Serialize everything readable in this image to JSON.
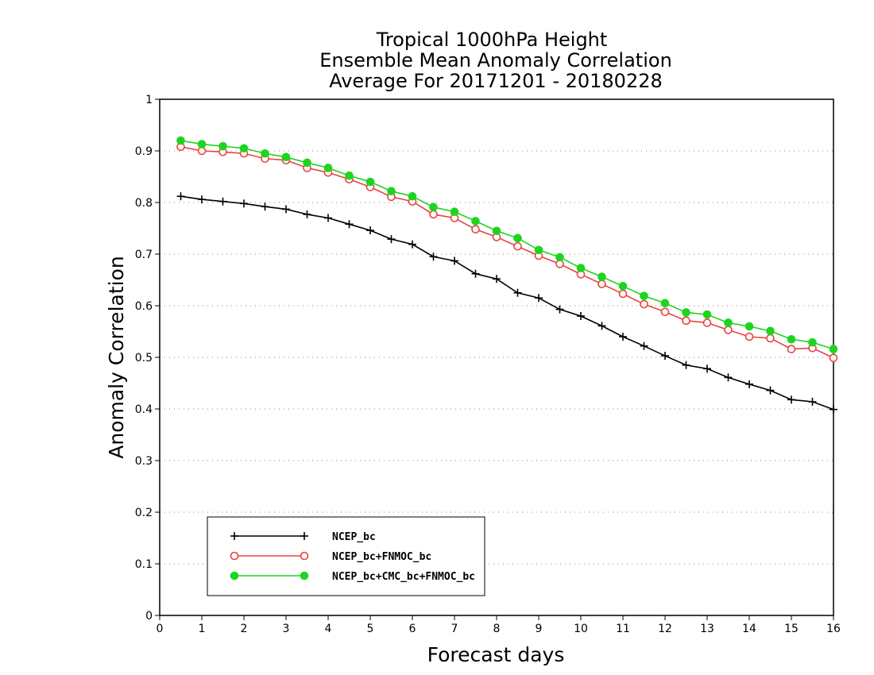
{
  "chart_data": {
    "type": "line",
    "title": [
      "Tropical 1000hPa Height",
      "Ensemble Mean Anomaly Correlation",
      "Average For 20171201 - 20180228"
    ],
    "xlabel": "Forecast days",
    "ylabel": "Anomaly Correlation",
    "xlim": [
      0,
      16
    ],
    "ylim": [
      0,
      1
    ],
    "xticks": [
      "0",
      "1",
      "2",
      "3",
      "4",
      "5",
      "6",
      "7",
      "8",
      "9",
      "10",
      "11",
      "12",
      "13",
      "14",
      "15",
      "16"
    ],
    "yticks": [
      "0",
      "0.1",
      "0.2",
      "0.3",
      "0.4",
      "0.5",
      "0.6",
      "0.7",
      "0.8",
      "0.9",
      "1"
    ],
    "grid": "horizontal-dotted",
    "legend_position": "bottom-left",
    "x": [
      0.5,
      1,
      1.5,
      2,
      2.5,
      3,
      3.5,
      4,
      4.5,
      5,
      5.5,
      6,
      6.5,
      7,
      7.5,
      8,
      8.5,
      9,
      9.5,
      10,
      10.5,
      11,
      11.5,
      12,
      12.5,
      13,
      13.5,
      14,
      14.5,
      15,
      15.5,
      16
    ],
    "series": [
      {
        "name": "NCEP_bc",
        "color": "#000000",
        "marker": "plus",
        "values": [
          0.812,
          0.806,
          0.802,
          0.798,
          0.792,
          0.787,
          0.777,
          0.77,
          0.758,
          0.746,
          0.729,
          0.719,
          0.695,
          0.687,
          0.662,
          0.652,
          0.625,
          0.615,
          0.593,
          0.58,
          0.561,
          0.54,
          0.522,
          0.503,
          0.485,
          0.478,
          0.461,
          0.448,
          0.436,
          0.418,
          0.414,
          0.399
        ]
      },
      {
        "name": "NCEP_bc+FNMOC_bc",
        "color": "#e8433f",
        "marker": "open-circle",
        "values": [
          0.908,
          0.9,
          0.898,
          0.895,
          0.885,
          0.882,
          0.867,
          0.858,
          0.845,
          0.83,
          0.811,
          0.802,
          0.777,
          0.77,
          0.748,
          0.733,
          0.715,
          0.697,
          0.681,
          0.661,
          0.642,
          0.623,
          0.603,
          0.588,
          0.571,
          0.567,
          0.553,
          0.54,
          0.537,
          0.516,
          0.518,
          0.499
        ]
      },
      {
        "name": "NCEP_bc+CMC_bc+FNMOC_bc",
        "color": "#1fd41f",
        "marker": "filled-circle",
        "values": [
          0.92,
          0.913,
          0.909,
          0.905,
          0.895,
          0.888,
          0.877,
          0.867,
          0.852,
          0.84,
          0.822,
          0.812,
          0.791,
          0.782,
          0.764,
          0.745,
          0.731,
          0.708,
          0.694,
          0.673,
          0.656,
          0.638,
          0.619,
          0.605,
          0.587,
          0.583,
          0.567,
          0.56,
          0.551,
          0.535,
          0.529,
          0.516
        ]
      }
    ]
  }
}
